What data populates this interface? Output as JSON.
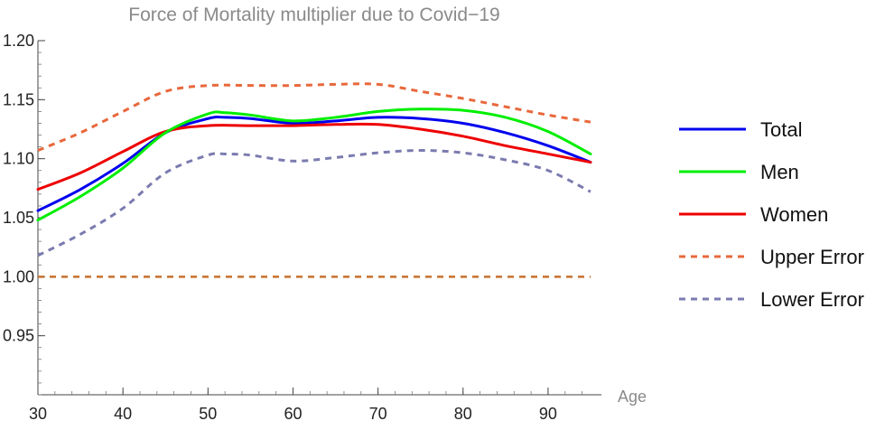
{
  "chart_data": {
    "type": "line",
    "title": "Force of Mortality multiplier due to Covid−19",
    "xlabel": "Age",
    "ylabel": "",
    "xlim": [
      30,
      95
    ],
    "ylim": [
      0.9,
      1.2
    ],
    "xticks": [
      30,
      40,
      50,
      60,
      70,
      80,
      90
    ],
    "xtick_labels": [
      "30",
      "40",
      "50",
      "60",
      "70",
      "80",
      "90"
    ],
    "yticks": [
      0.95,
      1.0,
      1.05,
      1.1,
      1.15,
      1.2
    ],
    "ytick_labels": [
      "0.95",
      "1.00",
      "1.05",
      "1.10",
      "1.15",
      "1.20"
    ],
    "grid": false,
    "legend_position": "right",
    "series": [
      {
        "name": "Total",
        "color": "#0000ee",
        "style": "solid",
        "x": [
          30,
          35,
          40,
          45,
          50,
          52,
          55,
          60,
          65,
          70,
          75,
          80,
          85,
          90,
          95
        ],
        "y": [
          1.056,
          1.074,
          1.096,
          1.122,
          1.134,
          1.135,
          1.134,
          1.13,
          1.132,
          1.135,
          1.134,
          1.13,
          1.122,
          1.111,
          1.097
        ]
      },
      {
        "name": "Men",
        "color": "#00ee00",
        "style": "solid",
        "x": [
          30,
          35,
          40,
          45,
          50,
          52,
          55,
          60,
          65,
          70,
          75,
          80,
          85,
          90,
          95
        ],
        "y": [
          1.048,
          1.068,
          1.092,
          1.122,
          1.138,
          1.139,
          1.137,
          1.132,
          1.135,
          1.14,
          1.142,
          1.141,
          1.135,
          1.123,
          1.104
        ]
      },
      {
        "name": "Women",
        "color": "#ee0000",
        "style": "solid",
        "x": [
          30,
          35,
          40,
          45,
          50,
          55,
          60,
          65,
          70,
          75,
          80,
          85,
          90,
          95
        ],
        "y": [
          1.074,
          1.088,
          1.106,
          1.123,
          1.128,
          1.128,
          1.128,
          1.129,
          1.129,
          1.125,
          1.119,
          1.111,
          1.104,
          1.097
        ]
      },
      {
        "name": "Upper Error",
        "color": "#e8683c",
        "style": "dashed",
        "x": [
          30,
          35,
          40,
          45,
          50,
          55,
          60,
          65,
          70,
          75,
          80,
          85,
          90,
          95
        ],
        "y": [
          1.107,
          1.122,
          1.14,
          1.157,
          1.162,
          1.162,
          1.162,
          1.163,
          1.163,
          1.157,
          1.151,
          1.144,
          1.137,
          1.131
        ]
      },
      {
        "name": "Lower Error",
        "color": "#7b7bb0",
        "style": "dashed",
        "x": [
          30,
          35,
          40,
          45,
          50,
          52,
          55,
          60,
          65,
          70,
          75,
          80,
          85,
          90,
          95
        ],
        "y": [
          1.018,
          1.036,
          1.058,
          1.088,
          1.103,
          1.104,
          1.103,
          1.098,
          1.101,
          1.105,
          1.107,
          1.105,
          1.099,
          1.09,
          1.072
        ]
      }
    ],
    "reference_line": {
      "y": 1.0,
      "color": "#c8702c",
      "style": "dashed"
    }
  }
}
